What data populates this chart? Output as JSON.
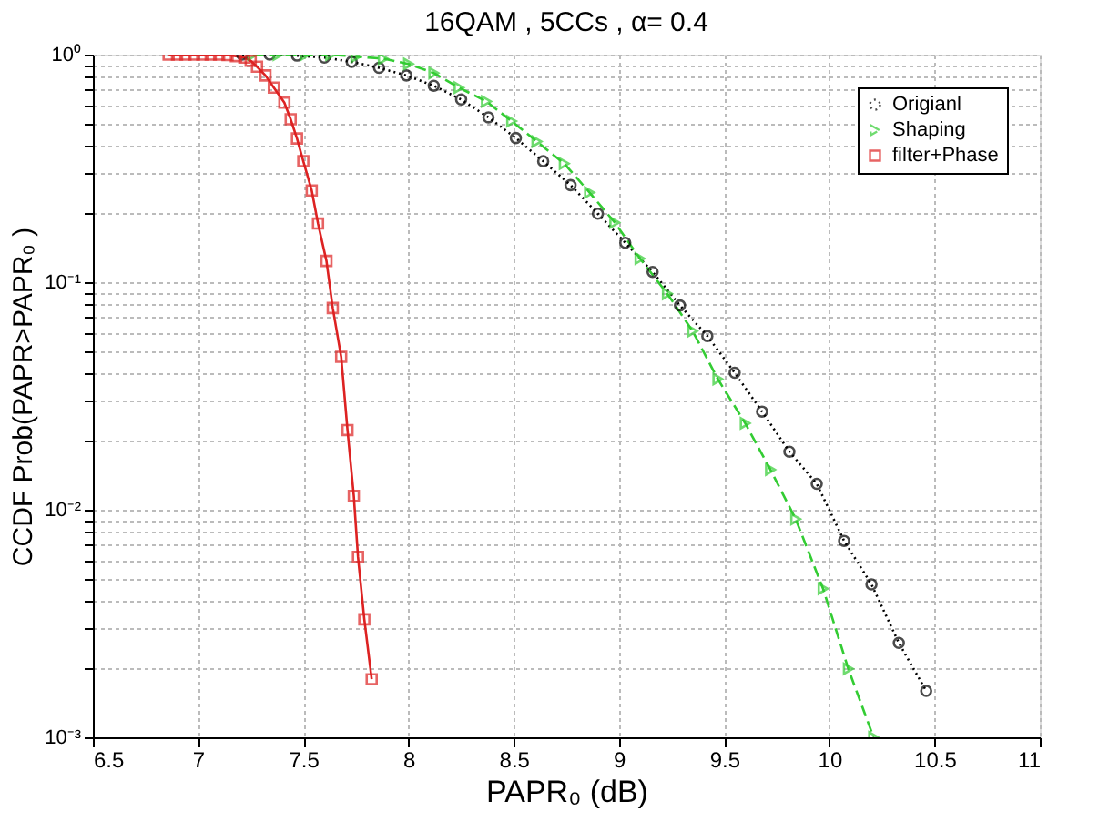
{
  "chart_data": {
    "type": "line",
    "title": "16QAM  , 5CCs  , α= 0.4",
    "xlabel": "PAPR₀ (dB)",
    "ylabel": "CCDF Prob(PAPR>PAPR₀ )",
    "log": "y",
    "grid": true,
    "legend": "top right",
    "xlim": [
      6.5,
      11
    ],
    "xticks": [
      6.5,
      7,
      7.5,
      8,
      8.5,
      9,
      9.5,
      10,
      10.5,
      11
    ],
    "ylim": [
      0.001,
      1
    ],
    "yticks": [
      {
        "value": 0.001,
        "label": "10⁻³"
      },
      {
        "value": 0.002,
        "label": null
      },
      {
        "value": 0.003,
        "label": null
      },
      {
        "value": 0.004,
        "label": null
      },
      {
        "value": 0.005,
        "label": null
      },
      {
        "value": 0.006,
        "label": null
      },
      {
        "value": 0.007,
        "label": null
      },
      {
        "value": 0.008,
        "label": null
      },
      {
        "value": 0.009,
        "label": null
      },
      {
        "value": 0.01,
        "label": "10⁻²"
      },
      {
        "value": 0.02,
        "label": null
      },
      {
        "value": 0.03,
        "label": null
      },
      {
        "value": 0.04,
        "label": null
      },
      {
        "value": 0.05,
        "label": null
      },
      {
        "value": 0.06,
        "label": null
      },
      {
        "value": 0.07,
        "label": null
      },
      {
        "value": 0.08,
        "label": null
      },
      {
        "value": 0.09,
        "label": null
      },
      {
        "value": 0.1,
        "label": "10⁻¹"
      },
      {
        "value": 0.2,
        "label": null
      },
      {
        "value": 0.3,
        "label": null
      },
      {
        "value": 0.4,
        "label": null
      },
      {
        "value": 0.5,
        "label": null
      },
      {
        "value": 0.6,
        "label": null
      },
      {
        "value": 0.7,
        "label": null
      },
      {
        "value": 0.8,
        "label": null
      },
      {
        "value": 0.9,
        "label": null
      },
      {
        "value": 1,
        "label": "10⁰"
      }
    ],
    "series": [
      {
        "name": "Origianl",
        "color": "#000000",
        "marker": "circle",
        "line_style": "dotted",
        "x": [
          7.21,
          7.34,
          7.47,
          7.6,
          7.73,
          7.86,
          7.99,
          8.12,
          8.25,
          8.38,
          8.51,
          8.64,
          8.77,
          8.9,
          9.03,
          9.16,
          9.29,
          9.42,
          9.55,
          9.68,
          9.81,
          9.94,
          10.07,
          10.2,
          10.33,
          10.46
        ],
        "values": [
          1,
          1,
          0.99,
          0.97,
          0.93,
          0.875,
          0.81,
          0.73,
          0.635,
          0.53,
          0.43,
          0.34,
          0.267,
          0.2,
          0.149,
          0.111,
          0.079,
          0.058,
          0.04,
          0.027,
          0.018,
          0.013,
          0.0073,
          0.0047,
          0.0026,
          0.0016
        ]
      },
      {
        "name": "Shaping",
        "color": "#33cc33",
        "marker": "triangle",
        "line_style": "dashed",
        "x": [
          7.26,
          7.38,
          7.51,
          7.63,
          7.75,
          7.88,
          8.0,
          8.12,
          8.24,
          8.37,
          8.49,
          8.61,
          8.74,
          8.86,
          8.98,
          9.1,
          9.23,
          9.35,
          9.47,
          9.6,
          9.72,
          9.84,
          9.97,
          10.09,
          10.21
        ],
        "values": [
          1,
          1,
          1,
          1,
          0.98,
          0.96,
          0.91,
          0.83,
          0.716,
          0.623,
          0.51,
          0.415,
          0.332,
          0.248,
          0.183,
          0.127,
          0.089,
          0.061,
          0.0375,
          0.024,
          0.015,
          0.0091,
          0.0045,
          0.002,
          0.001
        ]
      },
      {
        "name": "filter+Phase",
        "color": "#dd2222",
        "marker": "square",
        "line_style": "solid",
        "x": [
          6.86,
          6.9,
          6.94,
          6.98,
          7.02,
          7.06,
          7.1,
          7.14,
          7.18,
          7.22,
          7.25,
          7.28,
          7.32,
          7.36,
          7.41,
          7.44,
          7.47,
          7.5,
          7.54,
          7.57,
          7.61,
          7.64,
          7.68,
          7.71,
          7.74,
          7.76,
          7.79,
          7.825
        ],
        "values": [
          1,
          1,
          1,
          1,
          1,
          1,
          1,
          0.995,
          0.985,
          0.97,
          0.94,
          0.885,
          0.81,
          0.716,
          0.615,
          0.52,
          0.428,
          0.34,
          0.253,
          0.181,
          0.124,
          0.077,
          0.047,
          0.0224,
          0.0115,
          0.0062,
          0.0033,
          0.0018
        ]
      }
    ]
  }
}
